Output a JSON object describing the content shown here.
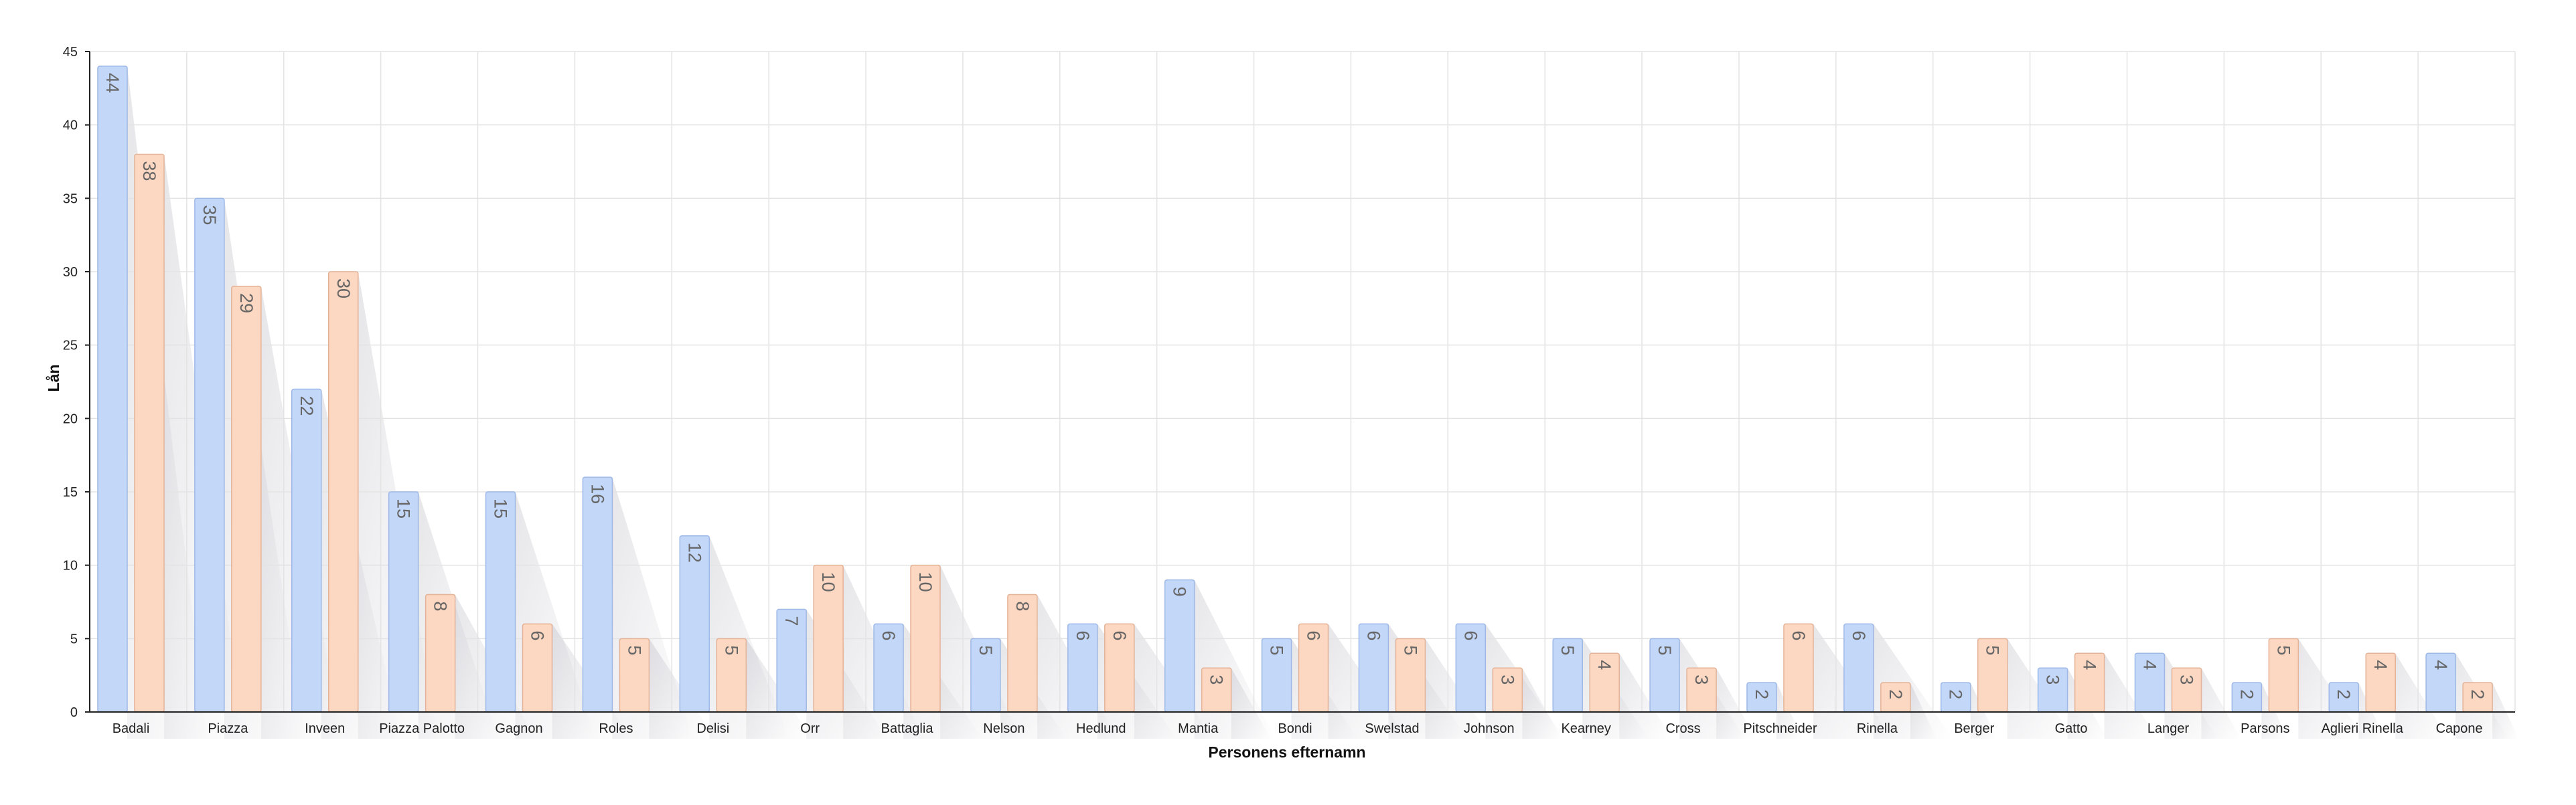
{
  "chart_data": {
    "type": "bar",
    "title": "",
    "xlabel": "Personens efternamn",
    "ylabel": "Lån",
    "ylim": [
      0,
      45
    ],
    "yticks": [
      0,
      5,
      10,
      15,
      20,
      25,
      30,
      35,
      40,
      45
    ],
    "grid": true,
    "legend": "none",
    "categories": [
      "Badali",
      "Piazza",
      "Inveen",
      "Piazza Palotto",
      "Gagnon",
      "Roles",
      "Delisi",
      "Orr",
      "Battaglia",
      "Nelson",
      "Hedlund",
      "Mantia",
      "Bondi",
      "Swelstad",
      "Johnson",
      "Kearney",
      "Cross",
      "Pitschneider",
      "Rinella",
      "Berger",
      "Gatto",
      "Langer",
      "Parsons",
      "Aglieri Rinella",
      "Capone"
    ],
    "series": [
      {
        "values": [
          44,
          35,
          22,
          15,
          15,
          16,
          12,
          7,
          6,
          5,
          6,
          9,
          5,
          6,
          6,
          5,
          5,
          2,
          6,
          2,
          3,
          4,
          2,
          2,
          4
        ],
        "fill": "#c3d7f9",
        "stroke": "#9db8e6"
      },
      {
        "values": [
          38,
          29,
          30,
          8,
          6,
          5,
          5,
          10,
          10,
          8,
          6,
          3,
          6,
          5,
          3,
          4,
          3,
          6,
          2,
          5,
          4,
          3,
          5,
          4,
          2
        ],
        "fill": "#fcd7c1",
        "stroke": "#e4b296"
      }
    ]
  }
}
